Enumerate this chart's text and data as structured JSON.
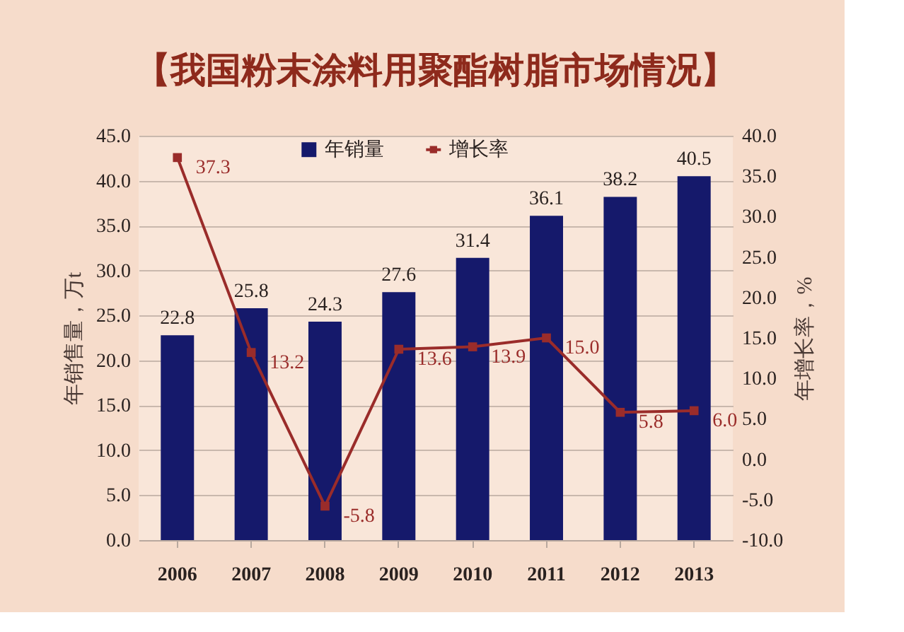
{
  "chart_data": {
    "type": "bar",
    "title": "【我国粉末涂料用聚酯树脂市场情况】",
    "categories": [
      "2006",
      "2007",
      "2008",
      "2009",
      "2010",
      "2011",
      "2012",
      "2013"
    ],
    "ylabel": "年销售量，万t",
    "y2label": "年增长率，%",
    "series": [
      {
        "name": "年销量",
        "color": "#15196b",
        "values": [
          22.8,
          25.8,
          24.3,
          27.6,
          31.4,
          36.1,
          38.2,
          40.5
        ],
        "value_labels": [
          "22.8",
          "25.8",
          "24.3",
          "27.6",
          "31.4",
          "36.1",
          "38.2",
          "40.5"
        ]
      },
      {
        "name": "增长率",
        "type": "line",
        "axis": "y2",
        "color": "#9a2c2a",
        "values": [
          37.3,
          13.2,
          -5.8,
          13.6,
          13.9,
          15.0,
          5.8,
          6.0
        ],
        "value_labels": [
          "37.3",
          "13.2",
          "-5.8",
          "13.6",
          "13.9",
          "15.0",
          "5.8",
          "6.0"
        ]
      }
    ],
    "ylim": [
      0,
      45
    ],
    "yticks": [
      {
        "value": 0,
        "label": "0.0"
      },
      {
        "value": 5,
        "label": "5.0"
      },
      {
        "value": 10,
        "label": "10.0"
      },
      {
        "value": 15,
        "label": "15.0"
      },
      {
        "value": 20,
        "label": "20.0"
      },
      {
        "value": 25,
        "label": "25.0"
      },
      {
        "value": 30,
        "label": "30.0"
      },
      {
        "value": 35,
        "label": "35.0"
      },
      {
        "value": 40,
        "label": "40.0"
      },
      {
        "value": 45,
        "label": "45.0"
      }
    ],
    "y2lim": [
      -10,
      40
    ],
    "y2ticks": [
      {
        "value": -10,
        "label": "-10.0"
      },
      {
        "value": -5,
        "label": "-5.0"
      },
      {
        "value": 0,
        "label": "0.0"
      },
      {
        "value": 5,
        "label": "5.0"
      },
      {
        "value": 10,
        "label": "10.0"
      },
      {
        "value": 15,
        "label": "15.0"
      },
      {
        "value": 20,
        "label": "20.0"
      },
      {
        "value": 25,
        "label": "25.0"
      },
      {
        "value": 30,
        "label": "30.0"
      },
      {
        "value": 35,
        "label": "35.0"
      },
      {
        "value": 40,
        "label": "40.0"
      }
    ],
    "grid": "y",
    "legend": "top",
    "marker": "square"
  }
}
